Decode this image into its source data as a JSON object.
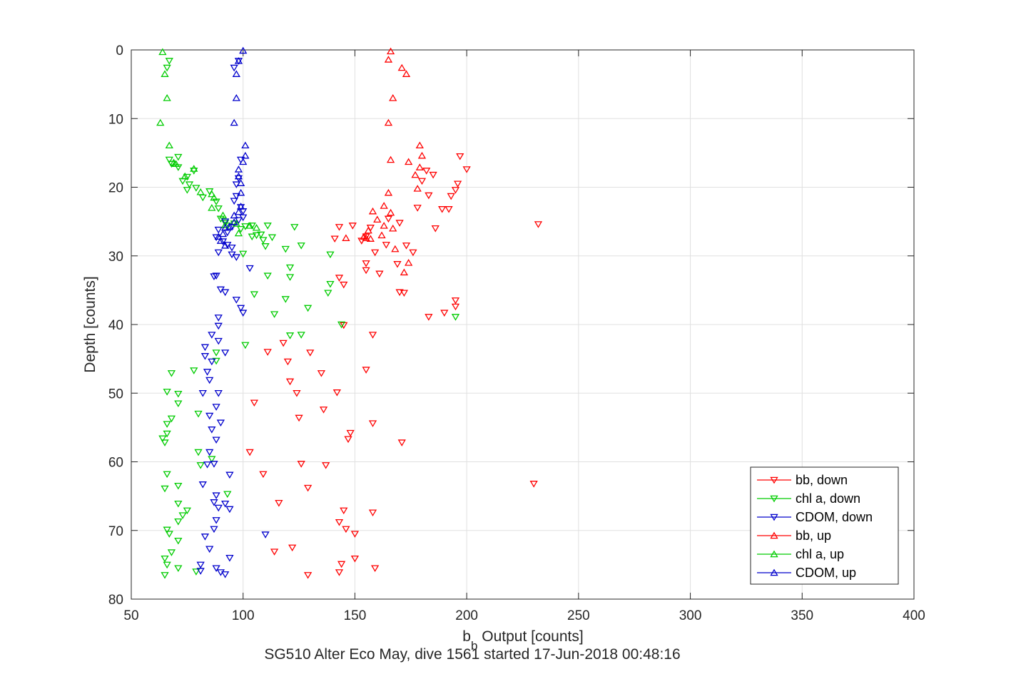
{
  "chart_data": {
    "type": "scatter",
    "xlabel_main": "b",
    "xlabel_sub": "b",
    "xlabel_rest": " Output [counts]",
    "ylabel": "Depth [counts]",
    "caption": "SG510 Alter Eco May, dive 1561 started 17-Jun-2018 00:48:16",
    "xlim": [
      50,
      400
    ],
    "ylim": [
      0,
      80
    ],
    "y_reversed": true,
    "grid": true,
    "xticks": [
      50,
      100,
      150,
      200,
      250,
      300,
      350,
      400
    ],
    "yticks": [
      0,
      10,
      20,
      30,
      40,
      50,
      60,
      70,
      80
    ],
    "legend_position": "bottom-right",
    "series": [
      {
        "name": "bb, down",
        "color": "#ff0000",
        "marker": "triangle-down",
        "points": [
          [
            157,
            25.9
          ],
          [
            155,
            27.2
          ],
          [
            153,
            27.8
          ],
          [
            165,
            24.6
          ],
          [
            170,
            25.2
          ],
          [
            143,
            25.8
          ],
          [
            149,
            25.6
          ],
          [
            141,
            27.5
          ],
          [
            232,
            25.4
          ],
          [
            178,
            23.0
          ],
          [
            183,
            21.2
          ],
          [
            189,
            23.2
          ],
          [
            186,
            26.0
          ],
          [
            180,
            19.1
          ],
          [
            185,
            18.2
          ],
          [
            182,
            17.6
          ],
          [
            197,
            15.5
          ],
          [
            200,
            17.4
          ],
          [
            196,
            19.5
          ],
          [
            193,
            21.3
          ],
          [
            192,
            23.2
          ],
          [
            195,
            20.4
          ],
          [
            173,
            28.5
          ],
          [
            176,
            29.5
          ],
          [
            164,
            28.4
          ],
          [
            159,
            29.5
          ],
          [
            169,
            31.2
          ],
          [
            155,
            31.1
          ],
          [
            155,
            32.1
          ],
          [
            161,
            32.6
          ],
          [
            143,
            33.2
          ],
          [
            145,
            34.2
          ],
          [
            170,
            35.3
          ],
          [
            172,
            35.4
          ],
          [
            195,
            36.5
          ],
          [
            195,
            37.4
          ],
          [
            190,
            38.3
          ],
          [
            183,
            38.9
          ],
          [
            158,
            41.5
          ],
          [
            145,
            40.1
          ],
          [
            118,
            42.7
          ],
          [
            120,
            45.4
          ],
          [
            111,
            44.0
          ],
          [
            130,
            44.1
          ],
          [
            135,
            47.1
          ],
          [
            155,
            46.6
          ],
          [
            121,
            48.3
          ],
          [
            124,
            50.0
          ],
          [
            142,
            49.9
          ],
          [
            105,
            51.4
          ],
          [
            136,
            52.4
          ],
          [
            125,
            53.6
          ],
          [
            158,
            54.4
          ],
          [
            148,
            55.8
          ],
          [
            147,
            56.7
          ],
          [
            171,
            57.2
          ],
          [
            103,
            58.6
          ],
          [
            126,
            60.3
          ],
          [
            137,
            60.5
          ],
          [
            109,
            61.8
          ],
          [
            129,
            63.8
          ],
          [
            230,
            63.2
          ],
          [
            116,
            66.0
          ],
          [
            145,
            67.1
          ],
          [
            158,
            67.4
          ],
          [
            143,
            68.8
          ],
          [
            146,
            69.8
          ],
          [
            150,
            70.5
          ],
          [
            114,
            73.1
          ],
          [
            122,
            72.5
          ],
          [
            144,
            74.9
          ],
          [
            150,
            74.1
          ],
          [
            159,
            75.5
          ],
          [
            143,
            76.1
          ],
          [
            129,
            76.5
          ]
        ]
      },
      {
        "name": "chl a, down",
        "color": "#00cc00",
        "marker": "triangle-down",
        "points": [
          [
            66,
            2.6
          ],
          [
            67,
            1.6
          ],
          [
            67,
            16.0
          ],
          [
            68,
            16.6
          ],
          [
            71,
            15.6
          ],
          [
            71,
            17.1
          ],
          [
            75,
            18.5
          ],
          [
            76,
            19.6
          ],
          [
            75,
            20.4
          ],
          [
            73,
            19.1
          ],
          [
            78,
            17.6
          ],
          [
            79,
            20.1
          ],
          [
            82,
            21.5
          ],
          [
            85,
            20.6
          ],
          [
            88,
            22.1
          ],
          [
            89,
            23.1
          ],
          [
            90,
            24.6
          ],
          [
            92,
            25.2
          ],
          [
            93,
            25.6
          ],
          [
            96,
            25.3
          ],
          [
            99,
            26.1
          ],
          [
            101,
            25.7
          ],
          [
            104,
            25.6
          ],
          [
            104,
            27.2
          ],
          [
            106,
            27.0
          ],
          [
            108,
            26.9
          ],
          [
            109,
            27.7
          ],
          [
            110,
            28.6
          ],
          [
            113,
            27.3
          ],
          [
            111,
            25.6
          ],
          [
            123,
            25.8
          ],
          [
            126,
            28.5
          ],
          [
            119,
            29.0
          ],
          [
            100,
            29.7
          ],
          [
            139,
            29.8
          ],
          [
            121,
            31.7
          ],
          [
            111,
            32.9
          ],
          [
            121,
            33.1
          ],
          [
            139,
            34.1
          ],
          [
            138,
            35.4
          ],
          [
            105,
            35.6
          ],
          [
            119,
            36.3
          ],
          [
            129,
            37.6
          ],
          [
            114,
            38.5
          ],
          [
            195,
            38.9
          ],
          [
            144,
            40.0
          ],
          [
            121,
            41.6
          ],
          [
            126,
            41.5
          ],
          [
            101,
            43.0
          ],
          [
            88,
            44.1
          ],
          [
            88,
            45.3
          ],
          [
            78,
            46.7
          ],
          [
            68,
            47.1
          ],
          [
            66,
            49.8
          ],
          [
            71,
            50.1
          ],
          [
            71,
            51.5
          ],
          [
            68,
            53.7
          ],
          [
            66,
            54.5
          ],
          [
            66,
            55.9
          ],
          [
            64,
            56.6
          ],
          [
            65,
            57.2
          ],
          [
            80,
            53.0
          ],
          [
            80,
            58.6
          ],
          [
            81,
            60.5
          ],
          [
            86,
            59.6
          ],
          [
            66,
            61.8
          ],
          [
            71,
            63.5
          ],
          [
            65,
            63.9
          ],
          [
            93,
            64.7
          ],
          [
            71,
            66.1
          ],
          [
            75,
            67.1
          ],
          [
            73,
            67.8
          ],
          [
            71,
            68.7
          ],
          [
            66,
            69.9
          ],
          [
            67,
            70.5
          ],
          [
            71,
            71.5
          ],
          [
            68,
            73.2
          ],
          [
            65,
            74.1
          ],
          [
            66,
            75.0
          ],
          [
            71,
            75.5
          ],
          [
            65,
            76.5
          ],
          [
            79,
            76.0
          ]
        ]
      },
      {
        "name": "CDOM, down",
        "color": "#0000cc",
        "marker": "triangle-down",
        "points": [
          [
            96,
            2.6
          ],
          [
            98,
            1.6
          ],
          [
            99,
            16.0
          ],
          [
            97,
            19.6
          ],
          [
            98,
            18.7
          ],
          [
            97,
            21.3
          ],
          [
            96,
            22.0
          ],
          [
            99,
            22.9
          ],
          [
            100,
            23.5
          ],
          [
            100,
            24.4
          ],
          [
            98,
            24.8
          ],
          [
            92,
            25.0
          ],
          [
            95,
            25.8
          ],
          [
            89,
            26.2
          ],
          [
            93,
            26.6
          ],
          [
            88,
            27.3
          ],
          [
            91,
            27.9
          ],
          [
            93,
            28.4
          ],
          [
            95,
            28.8
          ],
          [
            89,
            29.5
          ],
          [
            95,
            29.8
          ],
          [
            97,
            30.2
          ],
          [
            103,
            31.8
          ],
          [
            88,
            32.9
          ],
          [
            87,
            33.0
          ],
          [
            90,
            34.9
          ],
          [
            92,
            35.3
          ],
          [
            97,
            36.4
          ],
          [
            99,
            37.6
          ],
          [
            100,
            38.3
          ],
          [
            89,
            39.0
          ],
          [
            89,
            40.2
          ],
          [
            86,
            41.5
          ],
          [
            89,
            42.4
          ],
          [
            83,
            43.3
          ],
          [
            83,
            44.6
          ],
          [
            92,
            44.1
          ],
          [
            86,
            45.4
          ],
          [
            84,
            46.9
          ],
          [
            85,
            48.1
          ],
          [
            82,
            50.0
          ],
          [
            89,
            50.0
          ],
          [
            88,
            52.0
          ],
          [
            85,
            53.3
          ],
          [
            90,
            54.3
          ],
          [
            86,
            55.3
          ],
          [
            88,
            56.8
          ],
          [
            85,
            58.6
          ],
          [
            84,
            60.4
          ],
          [
            87,
            60.3
          ],
          [
            94,
            61.9
          ],
          [
            82,
            63.3
          ],
          [
            88,
            64.9
          ],
          [
            87,
            65.9
          ],
          [
            92,
            66.1
          ],
          [
            89,
            66.7
          ],
          [
            94,
            66.9
          ],
          [
            88,
            68.5
          ],
          [
            87,
            69.8
          ],
          [
            83,
            70.9
          ],
          [
            110,
            70.6
          ],
          [
            85,
            72.7
          ],
          [
            94,
            74.0
          ],
          [
            81,
            75.0
          ],
          [
            81,
            75.9
          ],
          [
            88,
            75.5
          ],
          [
            90,
            76.1
          ],
          [
            92,
            76.4
          ]
        ]
      },
      {
        "name": "bb, up",
        "color": "#ff0000",
        "marker": "triangle-up",
        "points": [
          [
            166,
            0.2
          ],
          [
            165,
            1.4
          ],
          [
            171,
            2.6
          ],
          [
            173,
            3.5
          ],
          [
            167,
            7.0
          ],
          [
            165,
            10.6
          ],
          [
            166,
            16.0
          ],
          [
            179,
            13.9
          ],
          [
            180,
            15.4
          ],
          [
            174,
            16.3
          ],
          [
            179,
            17.1
          ],
          [
            177,
            18.2
          ],
          [
            178,
            20.2
          ],
          [
            165,
            20.8
          ],
          [
            163,
            22.7
          ],
          [
            166,
            23.7
          ],
          [
            158,
            23.5
          ],
          [
            160,
            24.7
          ],
          [
            163,
            25.6
          ],
          [
            167,
            26.0
          ],
          [
            156,
            26.3
          ],
          [
            155,
            27.4
          ],
          [
            157,
            27.5
          ],
          [
            162,
            27.0
          ],
          [
            146,
            27.4
          ],
          [
            154,
            27.2
          ],
          [
            168,
            29.0
          ],
          [
            174,
            31.0
          ],
          [
            172,
            32.4
          ]
        ]
      },
      {
        "name": "chl a, up",
        "color": "#00cc00",
        "marker": "triangle-up",
        "points": [
          [
            64,
            0.3
          ],
          [
            65,
            3.5
          ],
          [
            66,
            7.0
          ],
          [
            63,
            10.6
          ],
          [
            67,
            13.9
          ],
          [
            69,
            16.4
          ],
          [
            70,
            16.6
          ],
          [
            74,
            18.4
          ],
          [
            78,
            17.3
          ],
          [
            81,
            20.7
          ],
          [
            86,
            21.0
          ],
          [
            87,
            21.5
          ],
          [
            86,
            23.0
          ],
          [
            91,
            24.1
          ],
          [
            92,
            25.5
          ],
          [
            97,
            25.3
          ],
          [
            98,
            26.7
          ],
          [
            103,
            25.6
          ],
          [
            106,
            25.9
          ]
        ]
      },
      {
        "name": "CDOM, up",
        "color": "#0000cc",
        "marker": "triangle-up",
        "points": [
          [
            100,
            0.1
          ],
          [
            98,
            1.6
          ],
          [
            97,
            3.5
          ],
          [
            97,
            7.0
          ],
          [
            96,
            10.6
          ],
          [
            101,
            13.9
          ],
          [
            101,
            15.4
          ],
          [
            100,
            16.3
          ],
          [
            98,
            17.4
          ],
          [
            98,
            18.4
          ],
          [
            99,
            19.4
          ],
          [
            99,
            20.8
          ],
          [
            99,
            22.8
          ],
          [
            98,
            23.6
          ],
          [
            96,
            24.1
          ],
          [
            96,
            25.1
          ],
          [
            94,
            25.7
          ],
          [
            92,
            25.9
          ],
          [
            91,
            26.8
          ],
          [
            89,
            27.2
          ],
          [
            90,
            27.8
          ],
          [
            92,
            28.5
          ]
        ]
      }
    ]
  }
}
